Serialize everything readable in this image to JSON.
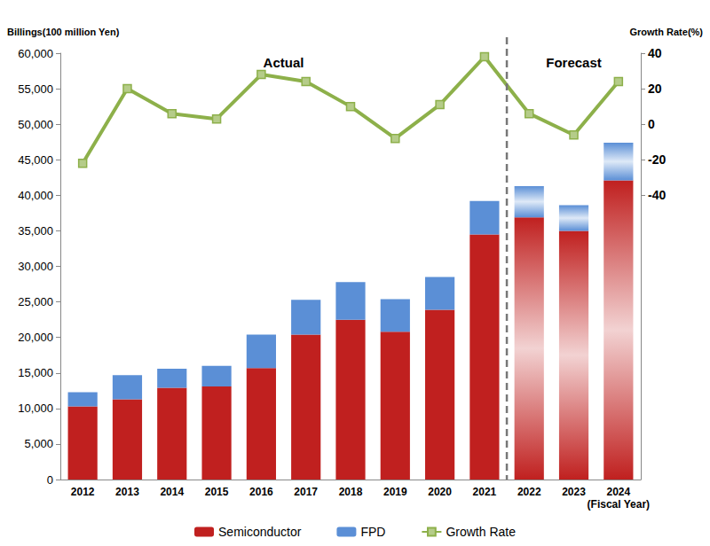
{
  "chart_data": {
    "type": "bar",
    "stacked": true,
    "grid": false,
    "legend": "bottom",
    "y_label": "Billings(100 million Yen)",
    "y2_label": "Growth Rate(%)",
    "x_label": "(Fiscal Year)",
    "annotations": [
      {
        "text": "Actual",
        "categories": [
          "2012",
          "2021"
        ]
      },
      {
        "text": "Forecast",
        "categories": [
          "2022",
          "2024"
        ]
      }
    ],
    "categories": [
      "2012",
      "2013",
      "2014",
      "2015",
      "2016",
      "2017",
      "2018",
      "2019",
      "2020",
      "2021",
      "2022",
      "2023",
      "2024"
    ],
    "series": [
      {
        "name": "Semiconductor",
        "color": "#c0201f",
        "values": [
          10300,
          11300,
          12900,
          13100,
          15700,
          20400,
          22500,
          20800,
          23900,
          34500,
          36900,
          35000,
          42100
        ]
      },
      {
        "name": "FPD",
        "color": "#5b8fd6",
        "values": [
          2000,
          3400,
          2700,
          2900,
          4700,
          4900,
          5300,
          4600,
          4600,
          4700,
          4400,
          3600,
          5300
        ]
      },
      {
        "name": "Growth Rate",
        "type": "line",
        "axis": "y2",
        "color": "#8db04a",
        "marker": "square",
        "values": [
          -22,
          20,
          6,
          3,
          28,
          24,
          10,
          -8,
          11,
          38,
          6,
          -6,
          24
        ]
      }
    ],
    "ylim": [
      0,
      60000
    ],
    "yticks": [
      0,
      {
        "value": 5000,
        "label": "5,000"
      },
      {
        "value": 10000,
        "label": "10,000"
      },
      {
        "value": 15000,
        "label": "15,000"
      },
      {
        "value": 20000,
        "label": "20,000"
      },
      {
        "value": 25000,
        "label": "25,000"
      },
      {
        "value": 30000,
        "label": "30,000"
      },
      {
        "value": 35000,
        "label": "35,000"
      },
      {
        "value": 40000,
        "label": "40,000"
      },
      {
        "value": 45000,
        "label": "45,000"
      },
      {
        "value": 50000,
        "label": "50,000"
      },
      {
        "value": 55000,
        "label": "55,000"
      },
      {
        "value": 60000,
        "label": "60,000"
      }
    ],
    "y2lim": [
      -200,
      40
    ],
    "y2ticks": [
      -40,
      -20,
      0,
      20,
      40
    ]
  }
}
